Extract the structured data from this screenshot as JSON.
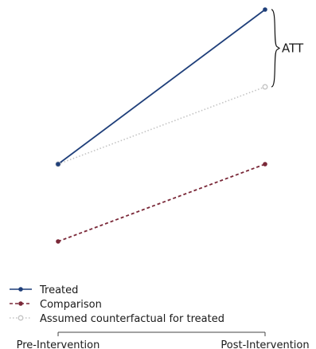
{
  "chart_data": {
    "type": "line",
    "categories": [
      "Pre-Intervention",
      "Post-Intervention"
    ],
    "series": [
      {
        "name": "Treated",
        "values": [
          1,
          3
        ],
        "color": "#1f3f7a",
        "dash": "solid",
        "marker": "filled-circle"
      },
      {
        "name": "Comparison",
        "values": [
          0,
          1
        ],
        "color": "#7a2838",
        "dash": "dashed",
        "marker": "filled-circle"
      },
      {
        "name": "Assumed counterfactual for treated",
        "values": [
          1,
          2
        ],
        "color": "#c4c4c4",
        "dash": "dotted",
        "marker": "hollow-circle"
      }
    ],
    "annotations": [
      {
        "text": "ATT",
        "kind": "brace",
        "from_value": 3,
        "to_value": 2,
        "category": "Post-Intervention"
      }
    ],
    "legend_position": "bottom-left",
    "grid": false,
    "title": "",
    "xlabel": "",
    "ylabel": ""
  }
}
